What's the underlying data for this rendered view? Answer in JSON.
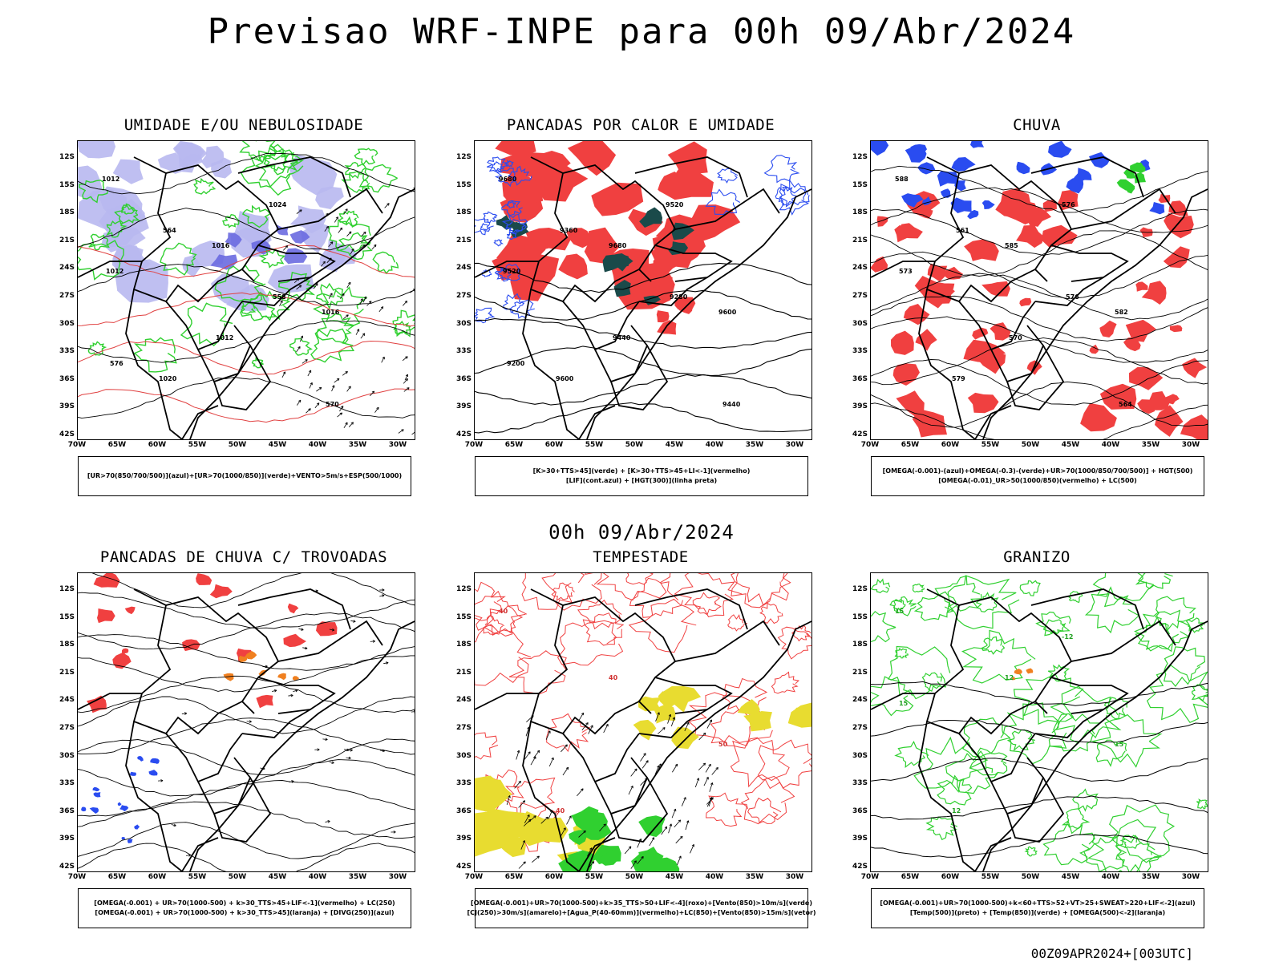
{
  "title": "Previsao WRF-INPE  para 00h 09/Abr/2024",
  "mid_date": "00h 09/Abr/2024",
  "footer": "00Z09APR2024+[003UTC]",
  "lat_labels": [
    "12S",
    "15S",
    "18S",
    "21S",
    "24S",
    "27S",
    "30S",
    "33S",
    "36S",
    "39S",
    "42S"
  ],
  "lon_labels": [
    "70W",
    "65W",
    "60W",
    "55W",
    "50W",
    "45W",
    "40W",
    "35W",
    "30W"
  ],
  "colors": {
    "red": "#f04040",
    "blue": "#2a4cf0",
    "green": "#30d030",
    "lavender": "#b8b8f0",
    "darkteal": "#1a4a4a",
    "yellow": "#e8dc30",
    "orange": "#f08020"
  },
  "panels": [
    {
      "title": "UMIDADE E/OU NEBULOSIDADE",
      "legend": [
        "[UR>70(850/700/500)](azul)+[UR>70(1000/850)](verde)+VENTO>5m/s+ESP(500/1000)"
      ],
      "contour_labels": [
        "1012",
        "1016",
        "1016",
        "1020",
        "1024",
        "1012",
        "1012",
        "570",
        "564",
        "558",
        "576"
      ]
    },
    {
      "title": "PANCADAS POR CALOR E UMIDADE",
      "legend": [
        "[K>30+TTS>45](verde) + [K>30+TTS>45+LI<-1](vermelho)",
        "[LIF](cont.azul) + [HGT(300)](linha preta)"
      ],
      "contour_labels": [
        "9680",
        "9680",
        "9600",
        "9600",
        "9520",
        "9520",
        "9440",
        "9440",
        "9360",
        "9280",
        "9200"
      ]
    },
    {
      "title": "CHUVA",
      "legend": [
        "[OMEGA(-0.001)-(azul)+OMEGA(-0.3)-(verde)+UR>70(1000/850/700/500)] + HGT(500)",
        "[OMEGA(-0.01)_UR>50(1000/850)(vermelho) + LC(500)"
      ],
      "contour_labels": [
        "588",
        "585",
        "582",
        "579",
        "576",
        "573",
        "570",
        "564",
        "561",
        "576"
      ]
    },
    {
      "title": "PANCADAS DE CHUVA C/ TROVOADAS",
      "legend": [
        "[OMEGA(-0.001) + UR>70(1000-500) + k>30_TTS>45+LIF<-1](vermelho) + LC(250)",
        "[OMEGA(-0.001) + UR>70(1000-500) + k>30_TTS>45](laranja) + [DIVG(250)](azul)"
      ],
      "contour_labels": []
    },
    {
      "title": "TEMPESTADE",
      "legend": [
        "[OMEGA(-0.001)+UR>70(1000-500)+k>35_TTS>50+LIF<-4](roxo)+[Vento(850)>10m/s](verde)",
        "[CJ(250)>30m/s](amarelo)+[Agua_P(40-60mm)](vermelho)+LC(850)+[Vento(850)>15m/s](vetor)"
      ],
      "contour_labels": [
        "40",
        "40",
        "50",
        "40"
      ]
    },
    {
      "title": "GRANIZO",
      "legend": [
        "[OMEGA(-0.001)+UR>70(1000-500)+k<60+TTS>52+VT>25+SWEAT>220+LIF<-2](azul)",
        "[Temp(500)](preto) + [Temp(850)](verde) + [OMEGA(500)<-2](laranja)"
      ],
      "contour_labels": [
        "15",
        "12",
        "15",
        "12",
        "-12",
        "15"
      ]
    }
  ]
}
